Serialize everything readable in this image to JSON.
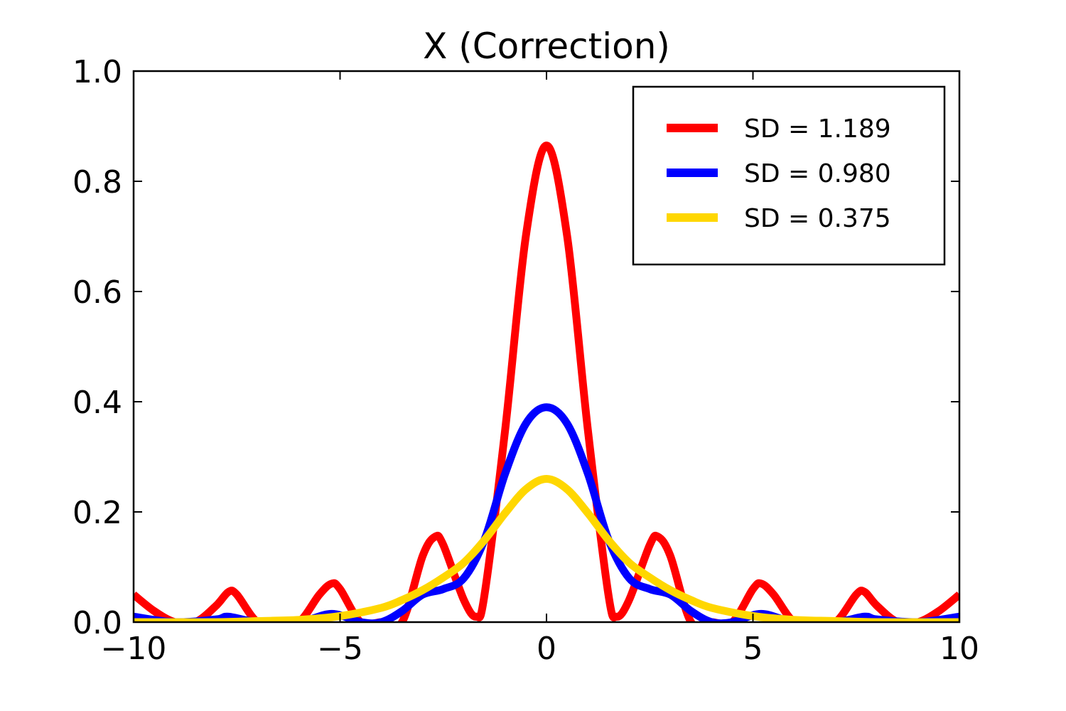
{
  "chart_data": {
    "type": "line",
    "title": "X (Correction)",
    "xlabel": "",
    "ylabel": "",
    "xlim": [
      -10,
      10
    ],
    "ylim": [
      0,
      1.0
    ],
    "x_ticks": [
      -10,
      -5,
      0,
      5,
      10
    ],
    "x_tick_labels": [
      "−10",
      "−5",
      "0",
      "5",
      "10"
    ],
    "y_ticks": [
      0.0,
      0.2,
      0.4,
      0.6,
      0.8,
      1.0
    ],
    "y_tick_labels": [
      "0.0",
      "0.2",
      "0.4",
      "0.6",
      "0.8",
      "1.0"
    ],
    "grid": false,
    "legend_position": "top-right",
    "series": [
      {
        "name": "SD = 1.189",
        "color": "#ff0000",
        "x": [
          -10,
          -9.5,
          -9.0,
          -8.5,
          -8.0,
          -7.7,
          -7.5,
          -7.0,
          -6.5,
          -6.0,
          -5.5,
          -5.2,
          -5.0,
          -4.5,
          -4.0,
          -3.5,
          -3.0,
          -2.7,
          -2.5,
          -2.0,
          -1.7,
          -1.5,
          -1.0,
          -0.5,
          0,
          0.5,
          1.0,
          1.5,
          1.7,
          2.0,
          2.5,
          2.7,
          3.0,
          3.5,
          4.0,
          4.5,
          5.0,
          5.2,
          5.5,
          6.0,
          6.5,
          7.0,
          7.5,
          7.7,
          8.0,
          8.5,
          9.0,
          9.5,
          10
        ],
        "y": [
          0.05,
          0.02,
          0.0,
          0.0,
          0.03,
          0.055,
          0.05,
          0.0,
          0.0,
          0.0,
          0.05,
          0.07,
          0.06,
          0.0,
          0.0,
          0.0,
          0.12,
          0.155,
          0.14,
          0.04,
          0.01,
          0.05,
          0.35,
          0.7,
          0.865,
          0.7,
          0.35,
          0.05,
          0.01,
          0.04,
          0.14,
          0.155,
          0.12,
          0.0,
          0.0,
          0.0,
          0.06,
          0.07,
          0.05,
          0.0,
          0.0,
          0.0,
          0.05,
          0.055,
          0.03,
          0.0,
          0.0,
          0.02,
          0.05
        ]
      },
      {
        "name": "SD = 0.980",
        "color": "#0000ff",
        "x": [
          -10,
          -9.0,
          -8.0,
          -7.7,
          -7.0,
          -6.0,
          -5.2,
          -4.5,
          -4.0,
          -3.5,
          -3.0,
          -2.5,
          -2.0,
          -1.5,
          -1.0,
          -0.5,
          0,
          0.5,
          1.0,
          1.5,
          2.0,
          2.5,
          3.0,
          3.5,
          4.0,
          4.5,
          5.2,
          6.0,
          7.0,
          7.7,
          8.0,
          9.0,
          10
        ],
        "y": [
          0.01,
          0.0,
          0.005,
          0.01,
          0.0,
          0.0,
          0.015,
          0.0,
          0.0,
          0.02,
          0.05,
          0.06,
          0.08,
          0.15,
          0.27,
          0.36,
          0.39,
          0.36,
          0.27,
          0.15,
          0.08,
          0.06,
          0.05,
          0.02,
          0.0,
          0.0,
          0.015,
          0.0,
          0.0,
          0.01,
          0.005,
          0.0,
          0.01
        ]
      },
      {
        "name": "SD = 0.375",
        "color": "#ffd700",
        "x": [
          -10,
          -8,
          -7,
          -6,
          -5,
          -4,
          -3.5,
          -3,
          -2.5,
          -2,
          -1.5,
          -1,
          -0.5,
          0,
          0.5,
          1,
          1.5,
          2,
          2.5,
          3,
          3.5,
          4,
          5,
          6,
          7,
          8,
          10
        ],
        "y": [
          0.0,
          0.0,
          0.002,
          0.004,
          0.011,
          0.026,
          0.04,
          0.058,
          0.081,
          0.108,
          0.149,
          0.198,
          0.241,
          0.26,
          0.241,
          0.198,
          0.149,
          0.108,
          0.081,
          0.058,
          0.04,
          0.026,
          0.011,
          0.004,
          0.002,
          0.0,
          0.0
        ]
      }
    ]
  }
}
